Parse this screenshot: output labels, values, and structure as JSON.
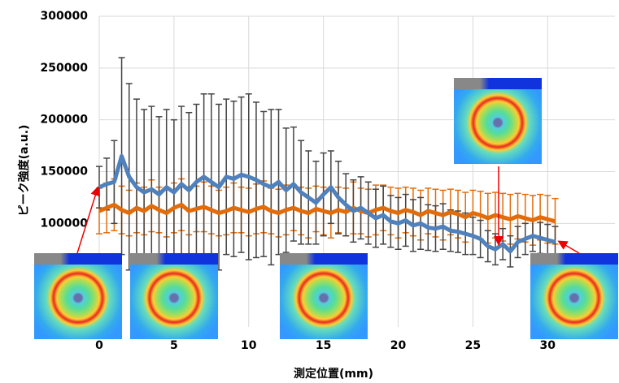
{
  "chart_data": {
    "type": "line",
    "xlabel": "測定位置(mm)",
    "ylabel": "ピーク強度(a.u.)",
    "x": [
      0,
      0.5,
      1,
      1.5,
      2,
      2.5,
      3,
      3.5,
      4,
      4.5,
      5,
      5.5,
      6,
      6.5,
      7,
      7.5,
      8,
      8.5,
      9,
      9.5,
      10,
      10.5,
      11,
      11.5,
      12,
      12.5,
      13,
      13.5,
      14,
      14.5,
      15,
      15.5,
      16,
      16.5,
      17,
      17.5,
      18,
      18.5,
      19,
      19.5,
      20,
      20.5,
      21,
      21.5,
      22,
      22.5,
      23,
      23.5,
      24,
      24.5,
      25,
      25.5,
      26,
      26.5,
      27,
      27.5,
      28,
      28.5,
      29,
      29.5,
      30,
      30.5
    ],
    "series": [
      {
        "color": "#e36c0a",
        "values": [
          112000,
          115000,
          118000,
          113000,
          110000,
          115000,
          112000,
          117000,
          113000,
          110000,
          115000,
          118000,
          112000,
          114000,
          116000,
          113000,
          110000,
          112000,
          115000,
          113000,
          111000,
          114000,
          116000,
          112000,
          110000,
          113000,
          115000,
          112000,
          110000,
          114000,
          112000,
          110000,
          113000,
          111000,
          115000,
          112000,
          110000,
          113000,
          115000,
          112000,
          110000,
          113000,
          111000,
          108000,
          112000,
          110000,
          108000,
          111000,
          109000,
          106000,
          110000,
          108000,
          105000,
          108000,
          106000,
          104000,
          107000,
          105000,
          103000,
          106000,
          104000,
          102000
        ],
        "errors": [
          22000,
          24000,
          25000,
          23000,
          22000,
          24000,
          23000,
          25000,
          22000,
          23000,
          24000,
          25000,
          23000,
          22000,
          24000,
          23000,
          22000,
          23000,
          24000,
          22000,
          23000,
          24000,
          25000,
          22000,
          23000,
          24000,
          22000,
          23000,
          24000,
          22000,
          23000,
          24000,
          22000,
          23000,
          25000,
          22000,
          23000,
          24000,
          22000,
          23000,
          24000,
          22000,
          23000,
          24000,
          22000,
          23000,
          24000,
          22000,
          23000,
          24000,
          22000,
          23000,
          24000,
          22000,
          23000,
          24000,
          22000,
          23000,
          24000,
          22000,
          23000,
          22000
        ]
      },
      {
        "color": "#4f81bd",
        "values": [
          135000,
          138000,
          140000,
          165000,
          145000,
          135000,
          130000,
          133000,
          128000,
          135000,
          130000,
          138000,
          132000,
          140000,
          145000,
          140000,
          135000,
          145000,
          143000,
          147000,
          145000,
          142000,
          138000,
          135000,
          140000,
          132000,
          138000,
          130000,
          125000,
          120000,
          128000,
          135000,
          125000,
          118000,
          112000,
          115000,
          110000,
          105000,
          108000,
          102000,
          100000,
          103000,
          98000,
          100000,
          96000,
          95000,
          97000,
          93000,
          92000,
          90000,
          88000,
          85000,
          78000,
          75000,
          80000,
          73000,
          82000,
          85000,
          88000,
          86000,
          84000,
          82000
        ],
        "errors": [
          20000,
          25000,
          40000,
          95000,
          90000,
          85000,
          80000,
          80000,
          75000,
          75000,
          70000,
          75000,
          75000,
          75000,
          80000,
          85000,
          80000,
          75000,
          75000,
          75000,
          80000,
          75000,
          70000,
          75000,
          70000,
          60000,
          55000,
          50000,
          45000,
          40000,
          40000,
          35000,
          35000,
          30000,
          30000,
          30000,
          30000,
          28000,
          28000,
          25000,
          25000,
          25000,
          25000,
          25000,
          22000,
          22000,
          22000,
          20000,
          20000,
          20000,
          18000,
          18000,
          15000,
          15000,
          15000,
          15000,
          15000,
          15000,
          15000,
          15000,
          15000,
          15000
        ]
      }
    ],
    "xlim": [
      0,
      34.5
    ],
    "xticks": [
      0,
      5,
      10,
      15,
      20,
      25,
      30
    ],
    "ylim": [
      0,
      300000
    ],
    "yticks": [
      100000,
      150000,
      200000,
      250000,
      300000
    ],
    "grid": true
  }
}
